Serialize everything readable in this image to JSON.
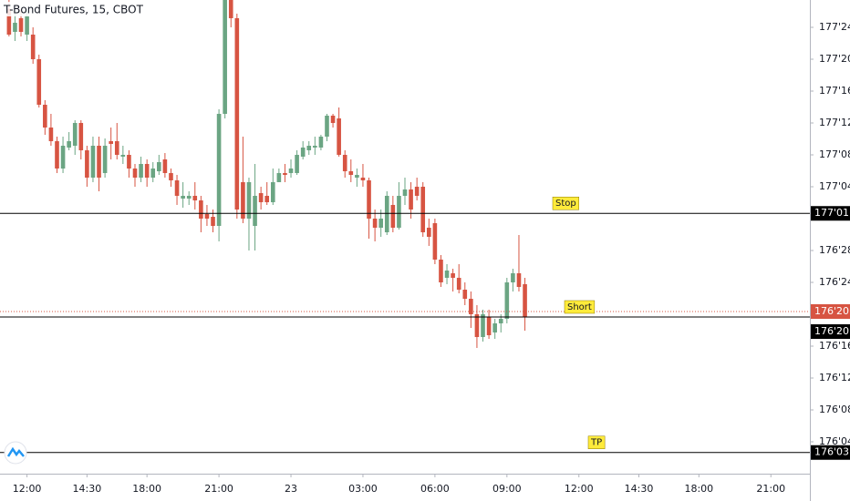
{
  "chart_data": {
    "type": "candlestick",
    "title": "T-Bond Futures, 15, CBOT",
    "up_color": "#6ba583",
    "down_color": "#d75442",
    "ylim": [
      176.0,
      177.8571
    ],
    "yticks": [
      {
        "value": 177.75,
        "label": "177'24"
      },
      {
        "value": 177.625,
        "label": "177'20"
      },
      {
        "value": 177.5,
        "label": "177'16"
      },
      {
        "value": 177.375,
        "label": "177'12"
      },
      {
        "value": 177.25,
        "label": "177'08"
      },
      {
        "value": 177.125,
        "label": "177'04"
      },
      {
        "value": 176.875,
        "label": "176'28"
      },
      {
        "value": 176.75,
        "label": "176'24"
      },
      {
        "value": 176.5,
        "label": "176'16"
      },
      {
        "value": 176.375,
        "label": "176'12"
      },
      {
        "value": 176.25,
        "label": "176'08"
      },
      {
        "value": 176.125,
        "label": "176'04"
      }
    ],
    "xlim": [
      -1.5,
      133.5
    ],
    "xticks": [
      {
        "value": 3,
        "label": "12:00"
      },
      {
        "value": 13,
        "label": "14:30"
      },
      {
        "value": 23,
        "label": "18:00"
      },
      {
        "value": 35,
        "label": "21:00"
      },
      {
        "value": 47,
        "label": "23"
      },
      {
        "value": 59,
        "label": "03:00"
      },
      {
        "value": 71,
        "label": "06:00"
      },
      {
        "value": 83,
        "label": "09:00"
      },
      {
        "value": 95,
        "label": "12:00"
      },
      {
        "value": 105,
        "label": "14:30"
      },
      {
        "value": 115,
        "label": "18:00"
      },
      {
        "value": 127,
        "label": "21:00"
      }
    ],
    "open": [
      177.8214,
      177.7321,
      177.7857,
      177.7214,
      177.7214,
      177.625,
      177.4464,
      177.3571,
      177.3036,
      177.1964,
      177.2786,
      177.2857,
      177.375,
      177.2679,
      177.1607,
      177.2857,
      177.1786,
      177.3036,
      177.3036,
      177.2429,
      177.25,
      177.1964,
      177.1607,
      177.2143,
      177.1607,
      177.1857,
      177.2321,
      177.1786,
      177.15,
      177.0786,
      177.0786,
      177.0893,
      177.0714,
      177.0179,
      177.0071,
      176.9714,
      177.4107,
      177.8571,
      177.7857,
      177.1429,
      177.0,
      176.9714,
      177.1,
      177.0893,
      177.0643,
      177.1429,
      177.1786,
      177.1786,
      177.1786,
      177.2429,
      177.2679,
      177.2786,
      177.2786,
      177.3214,
      177.4036,
      177.3929,
      177.25,
      177.1857,
      177.1607,
      177.1607,
      177.15,
      177.0,
      176.9643,
      176.9464,
      177.0536,
      176.9643,
      177.0893,
      177.1143,
      177.125,
      177.125,
      176.9643,
      176.9821,
      176.8393,
      176.7679,
      176.7857,
      176.7679,
      176.7214,
      176.6857,
      176.625,
      176.5357,
      176.6143,
      176.5536,
      176.5893,
      176.6071,
      176.75,
      176.7857,
      176.7429
    ],
    "high": [
      177.8571,
      177.8036,
      177.8214,
      177.8214,
      177.75,
      177.6429,
      177.4643,
      177.4107,
      177.3214,
      177.3214,
      177.3393,
      177.3857,
      177.3857,
      177.2857,
      177.3214,
      177.3214,
      177.3143,
      177.3571,
      177.375,
      177.2857,
      177.2679,
      177.2143,
      177.2429,
      177.2321,
      177.2214,
      177.25,
      177.2571,
      177.1964,
      177.1714,
      177.1429,
      177.1071,
      177.1429,
      177.0893,
      177.0536,
      177.0357,
      177.4286,
      177.8571,
      177.8571,
      177.8036,
      177.3214,
      177.1607,
      177.2143,
      177.125,
      177.1429,
      177.1964,
      177.1964,
      177.2143,
      177.2321,
      177.2679,
      177.3036,
      177.3036,
      177.3214,
      177.3286,
      177.4107,
      177.4107,
      177.4357,
      177.2679,
      177.2321,
      177.1964,
      177.2143,
      177.1607,
      177.0357,
      177.0357,
      177.1071,
      177.0893,
      177.1429,
      177.1607,
      177.1429,
      177.1607,
      177.1429,
      177.0,
      177.0,
      176.8571,
      176.8214,
      176.8036,
      176.8214,
      176.75,
      176.7143,
      176.6607,
      176.6429,
      176.6429,
      176.6071,
      176.625,
      176.7679,
      176.8036,
      176.9357,
      176.7679
    ],
    "low": [
      177.7143,
      177.6964,
      177.7143,
      177.6964,
      177.6071,
      177.4357,
      177.3286,
      177.2857,
      177.1786,
      177.1786,
      177.2679,
      177.25,
      177.2321,
      177.125,
      177.1429,
      177.1071,
      177.1607,
      177.2321,
      177.2321,
      177.2143,
      177.1607,
      177.125,
      177.1429,
      177.125,
      177.1429,
      177.1714,
      177.1607,
      177.125,
      177.0536,
      177.0429,
      177.0536,
      177.0357,
      176.9464,
      176.9714,
      176.9464,
      176.9107,
      177.3929,
      177.75,
      177.0,
      176.9821,
      176.875,
      176.875,
      177.0357,
      177.0536,
      177.0536,
      177.1429,
      177.1429,
      177.1607,
      177.1714,
      177.2321,
      177.25,
      177.25,
      177.2679,
      177.3036,
      177.3571,
      177.2429,
      177.1607,
      177.1429,
      177.125,
      177.125,
      176.9214,
      176.9107,
      176.9286,
      176.9357,
      176.9464,
      176.9571,
      177.0536,
      177.0,
      177.0714,
      176.9286,
      176.8929,
      176.8214,
      176.7321,
      176.7429,
      176.7143,
      176.7071,
      176.6607,
      176.5714,
      176.4929,
      176.5179,
      176.5286,
      176.5286,
      176.5536,
      176.5893,
      176.7143,
      176.7143,
      176.5607
    ],
    "close": [
      177.7214,
      177.7679,
      177.7321,
      177.7929,
      177.625,
      177.4464,
      177.3571,
      177.3036,
      177.1964,
      177.2857,
      177.3036,
      177.375,
      177.2679,
      177.1607,
      177.2857,
      177.1607,
      177.2857,
      177.2929,
      177.25,
      177.25,
      177.1964,
      177.1607,
      177.2143,
      177.1607,
      177.1964,
      177.2214,
      177.1786,
      177.15,
      177.0893,
      177.0893,
      177.0893,
      177.0714,
      177.0,
      177.0,
      176.9714,
      177.4107,
      177.8571,
      177.7857,
      177.0357,
      177.0,
      177.1429,
      177.0893,
      177.0643,
      177.0643,
      177.1429,
      177.1786,
      177.1714,
      177.1964,
      177.25,
      177.2786,
      177.2857,
      177.2857,
      177.3214,
      177.4036,
      177.375,
      177.25,
      177.1857,
      177.1714,
      177.1714,
      177.15,
      177.0,
      176.9643,
      177.0,
      177.0893,
      176.9643,
      177.0893,
      177.1143,
      177.0357,
      177.0893,
      176.9464,
      176.9286,
      176.8393,
      176.75,
      176.7964,
      176.7679,
      176.7214,
      176.6857,
      176.625,
      176.5357,
      176.625,
      176.5429,
      176.5893,
      176.6071,
      176.75,
      176.7857,
      176.7321,
      176.6143
    ],
    "hlines": [
      {
        "label": "Stop",
        "value": 177.03125,
        "price_label": "177'01"
      },
      {
        "label": "Short",
        "value": 176.625,
        "price_label": "176'20"
      },
      {
        "label": "TP",
        "value": 176.09375,
        "price_label": "176'03"
      }
    ],
    "last_price": {
      "value": 176.625,
      "label": "176'20"
    }
  }
}
